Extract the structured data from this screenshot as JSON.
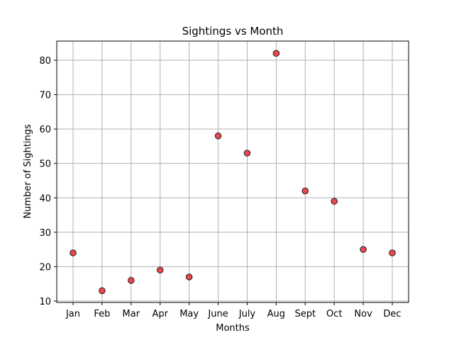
{
  "chart_data": {
    "type": "scatter",
    "title": "Sightings vs Month",
    "xlabel": "Months",
    "ylabel": "Number of Sightings",
    "categories": [
      "Jan",
      "Feb",
      "Mar",
      "Apr",
      "May",
      "June",
      "July",
      "Aug",
      "Sept",
      "Oct",
      "Nov",
      "Dec"
    ],
    "values": [
      24,
      13,
      16,
      19,
      17,
      58,
      53,
      82,
      42,
      39,
      25,
      24
    ],
    "ylim": [
      10,
      85
    ],
    "yticks": [
      10,
      20,
      30,
      40,
      50,
      60,
      70,
      80
    ],
    "grid": true,
    "marker_color": "#e8474c",
    "marker_edge_color": "#222222"
  }
}
